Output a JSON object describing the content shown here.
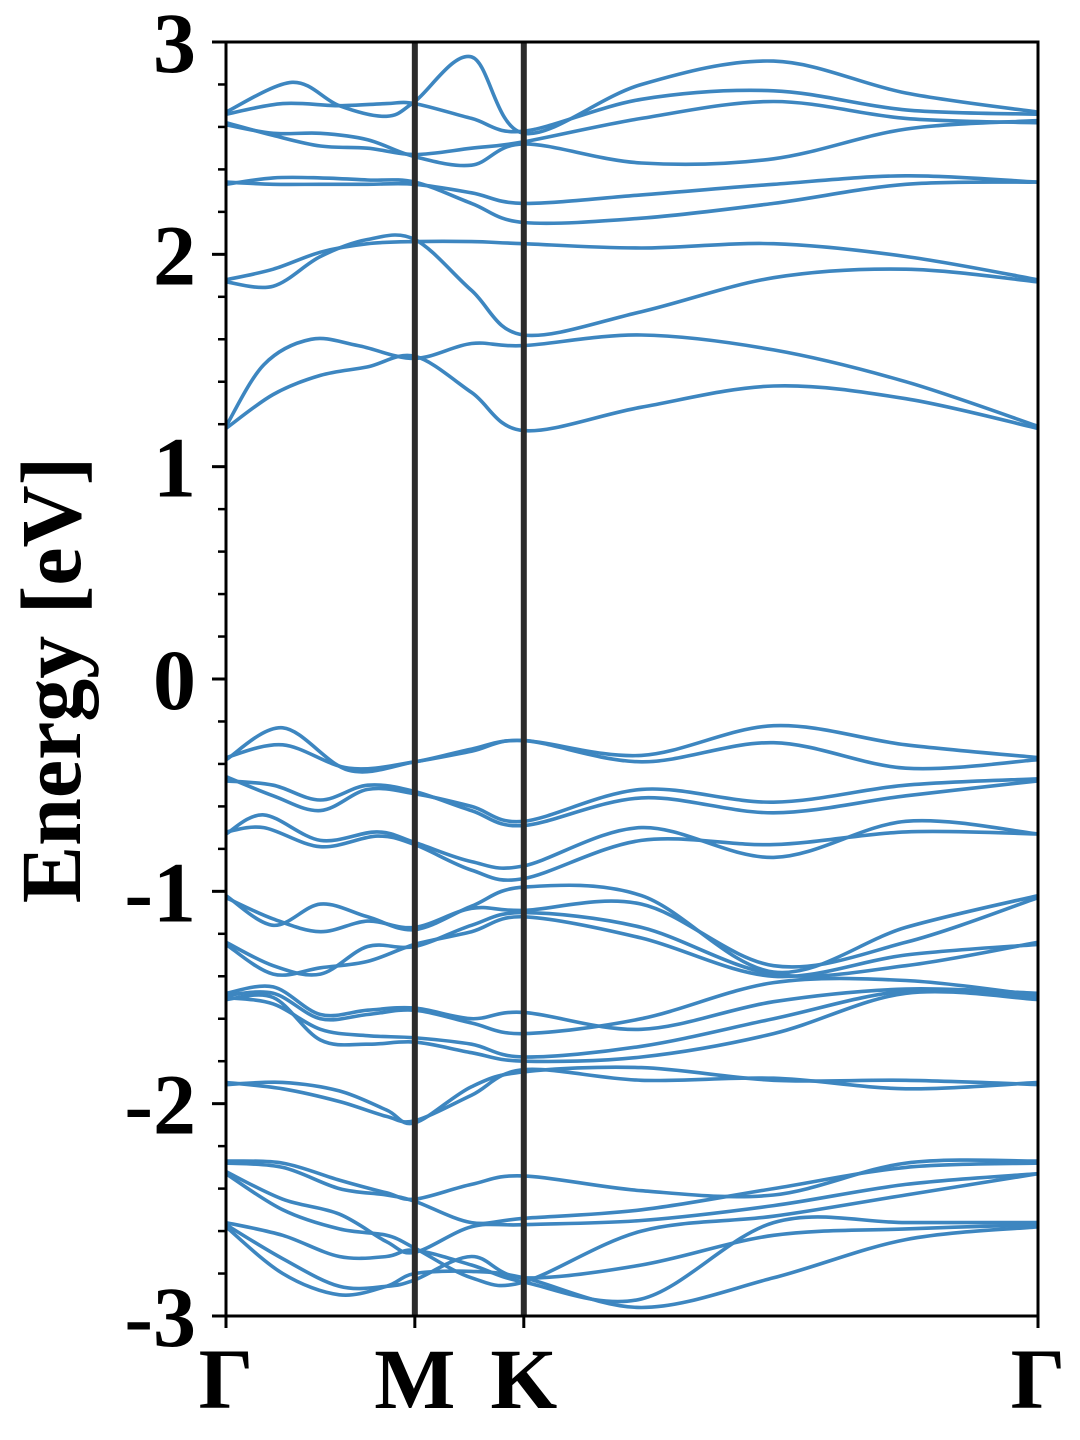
{
  "chart_data": {
    "type": "line",
    "title": "",
    "xlabel": "",
    "ylabel": "Energy [eV]",
    "ylim": [
      -3,
      3
    ],
    "grid": false,
    "legend": "none",
    "x_tick_labels": [
      "Γ",
      "M",
      "K",
      "Γ"
    ],
    "x_tick_positions": [
      0,
      1,
      1.577,
      4.3
    ],
    "x_range": [
      0,
      4.3
    ],
    "y_ticks": [
      -3,
      -2,
      -1,
      0,
      1,
      2,
      3
    ],
    "y_tick_labels": [
      "-3",
      "-2",
      "-1",
      "0",
      "1",
      "2",
      "3"
    ],
    "y_minor_step": 0.2,
    "vertical_lines_at": [
      1,
      1.577
    ],
    "colors": {
      "band": "#3d86c0",
      "axes": "#000000",
      "symmetry_line": "#2b2b2b"
    },
    "series": [
      {
        "x": [
          0,
          0.25,
          0.5,
          0.75,
          1,
          1.3,
          1.577,
          2.2,
          2.9,
          3.6,
          4.3
        ],
        "values": [
          1.18,
          1.34,
          1.43,
          1.47,
          1.52,
          1.35,
          1.17,
          1.28,
          1.38,
          1.32,
          1.18
        ]
      },
      {
        "x": [
          0,
          0.2,
          0.45,
          0.7,
          1,
          1.3,
          1.577,
          2.2,
          2.9,
          3.6,
          4.3
        ],
        "values": [
          1.19,
          1.48,
          1.6,
          1.57,
          1.51,
          1.58,
          1.57,
          1.62,
          1.55,
          1.4,
          1.19
        ]
      },
      {
        "x": [
          0,
          0.25,
          0.5,
          0.75,
          1,
          1.3,
          1.577,
          2.2,
          2.9,
          3.6,
          4.3
        ],
        "values": [
          1.87,
          1.85,
          1.99,
          2.07,
          2.07,
          1.83,
          1.62,
          1.73,
          1.89,
          1.93,
          1.87
        ]
      },
      {
        "x": [
          0,
          0.25,
          0.5,
          0.75,
          1,
          1.3,
          1.577,
          2.2,
          2.9,
          3.6,
          4.3
        ],
        "values": [
          1.88,
          1.93,
          2.01,
          2.05,
          2.06,
          2.06,
          2.05,
          2.03,
          2.05,
          1.99,
          1.88
        ]
      },
      {
        "x": [
          0,
          0.25,
          0.5,
          0.75,
          1,
          1.3,
          1.577,
          2.2,
          2.9,
          3.6,
          4.3
        ],
        "values": [
          2.33,
          2.36,
          2.36,
          2.35,
          2.34,
          2.24,
          2.15,
          2.17,
          2.24,
          2.33,
          2.34
        ]
      },
      {
        "x": [
          0,
          0.25,
          0.5,
          0.75,
          1,
          1.3,
          1.577,
          2.2,
          2.9,
          3.6,
          4.3
        ],
        "values": [
          2.34,
          2.33,
          2.33,
          2.33,
          2.33,
          2.29,
          2.24,
          2.28,
          2.33,
          2.37,
          2.34
        ]
      },
      {
        "x": [
          0,
          0.25,
          0.5,
          0.75,
          1,
          1.3,
          1.577,
          2.2,
          2.9,
          3.6,
          4.3
        ],
        "values": [
          2.61,
          2.57,
          2.57,
          2.54,
          2.46,
          2.42,
          2.52,
          2.43,
          2.45,
          2.59,
          2.63
        ]
      },
      {
        "x": [
          0,
          0.25,
          0.5,
          0.75,
          1,
          1.3,
          1.577,
          2.2,
          2.9,
          3.6,
          4.3
        ],
        "values": [
          2.62,
          2.56,
          2.51,
          2.5,
          2.47,
          2.5,
          2.53,
          2.64,
          2.72,
          2.64,
          2.62
        ]
      },
      {
        "x": [
          0,
          0.3,
          0.6,
          0.85,
          1,
          1.3,
          1.577,
          2.2,
          2.9,
          3.6,
          4.3
        ],
        "values": [
          2.66,
          2.71,
          2.7,
          2.71,
          2.71,
          2.64,
          2.58,
          2.73,
          2.77,
          2.68,
          2.66
        ]
      },
      {
        "x": [
          0,
          0.35,
          0.6,
          0.85,
          1,
          1.3,
          1.577,
          2.2,
          2.9,
          3.6,
          4.3
        ],
        "values": [
          2.67,
          2.81,
          2.7,
          2.65,
          2.72,
          2.93,
          2.57,
          2.8,
          2.91,
          2.76,
          2.67
        ]
      },
      {
        "x": [
          0,
          0.3,
          0.65,
          1,
          1.3,
          1.577,
          2.2,
          2.9,
          3.6,
          4.3
        ],
        "values": [
          -0.37,
          -0.31,
          -0.42,
          -0.39,
          -0.33,
          -0.29,
          -0.36,
          -0.22,
          -0.31,
          -0.37
        ]
      },
      {
        "x": [
          0,
          0.3,
          0.65,
          1,
          1.3,
          1.577,
          2.2,
          2.9,
          3.6,
          4.3
        ],
        "values": [
          -0.38,
          -0.23,
          -0.43,
          -0.39,
          -0.34,
          -0.29,
          -0.39,
          -0.3,
          -0.42,
          -0.38
        ]
      },
      {
        "x": [
          0,
          0.25,
          0.5,
          0.75,
          1,
          1.3,
          1.577,
          2.2,
          2.9,
          3.6,
          4.3
        ],
        "values": [
          -0.46,
          -0.55,
          -0.62,
          -0.52,
          -0.54,
          -0.6,
          -0.67,
          -0.52,
          -0.58,
          -0.5,
          -0.47
        ]
      },
      {
        "x": [
          0,
          0.25,
          0.5,
          0.75,
          1,
          1.3,
          1.577,
          2.2,
          2.9,
          3.6,
          4.3
        ],
        "values": [
          -0.48,
          -0.5,
          -0.57,
          -0.5,
          -0.53,
          -0.62,
          -0.69,
          -0.56,
          -0.63,
          -0.55,
          -0.48
        ]
      },
      {
        "x": [
          0,
          0.2,
          0.5,
          0.8,
          1,
          1.3,
          1.577,
          2.2,
          2.9,
          3.6,
          4.3
        ],
        "values": [
          -0.73,
          -0.64,
          -0.76,
          -0.72,
          -0.77,
          -0.86,
          -0.88,
          -0.7,
          -0.84,
          -0.67,
          -0.73
        ]
      },
      {
        "x": [
          0,
          0.2,
          0.5,
          0.8,
          1,
          1.3,
          1.577,
          2.2,
          2.9,
          3.6,
          4.3
        ],
        "values": [
          -0.72,
          -0.7,
          -0.79,
          -0.74,
          -0.78,
          -0.9,
          -0.94,
          -0.76,
          -0.78,
          -0.72,
          -0.73
        ]
      },
      {
        "x": [
          0,
          0.25,
          0.5,
          0.75,
          1,
          1.3,
          1.577,
          2.2,
          2.9,
          3.6,
          4.3
        ],
        "values": [
          -1.02,
          -1.16,
          -1.06,
          -1.12,
          -1.18,
          -1.07,
          -0.98,
          -1.02,
          -1.38,
          -1.17,
          -1.02
        ]
      },
      {
        "x": [
          0,
          0.25,
          0.5,
          0.75,
          1,
          1.3,
          1.577,
          2.2,
          2.9,
          3.6,
          4.3
        ],
        "values": [
          -1.03,
          -1.13,
          -1.19,
          -1.14,
          -1.17,
          -1.08,
          -1.09,
          -1.06,
          -1.35,
          -1.24,
          -1.03
        ]
      },
      {
        "x": [
          0,
          0.25,
          0.5,
          0.75,
          1,
          1.3,
          1.577,
          2.2,
          2.9,
          3.6,
          4.3
        ],
        "values": [
          -1.24,
          -1.35,
          -1.39,
          -1.26,
          -1.26,
          -1.16,
          -1.1,
          -1.17,
          -1.39,
          -1.35,
          -1.24
        ]
      },
      {
        "x": [
          0,
          0.25,
          0.5,
          0.75,
          1,
          1.3,
          1.577,
          2.2,
          2.9,
          3.6,
          4.3
        ],
        "values": [
          -1.25,
          -1.39,
          -1.36,
          -1.33,
          -1.25,
          -1.19,
          -1.12,
          -1.22,
          -1.4,
          -1.3,
          -1.25
        ]
      },
      {
        "x": [
          0,
          0.25,
          0.5,
          0.75,
          1,
          1.3,
          1.577,
          2.2,
          2.9,
          3.6,
          4.3
        ],
        "values": [
          -1.48,
          -1.45,
          -1.58,
          -1.56,
          -1.55,
          -1.6,
          -1.57,
          -1.65,
          -1.52,
          -1.46,
          -1.48
        ]
      },
      {
        "x": [
          0,
          0.25,
          0.5,
          0.75,
          1,
          1.3,
          1.577,
          2.2,
          2.9,
          3.6,
          4.3
        ],
        "values": [
          -1.49,
          -1.48,
          -1.6,
          -1.58,
          -1.56,
          -1.62,
          -1.67,
          -1.6,
          -1.43,
          -1.42,
          -1.49
        ]
      },
      {
        "x": [
          0,
          0.25,
          0.5,
          0.75,
          1,
          1.3,
          1.577,
          2.2,
          2.9,
          3.6,
          4.3
        ],
        "values": [
          -1.5,
          -1.53,
          -1.65,
          -1.68,
          -1.69,
          -1.72,
          -1.78,
          -1.73,
          -1.6,
          -1.47,
          -1.5
        ]
      },
      {
        "x": [
          0,
          0.25,
          0.5,
          0.75,
          1,
          1.3,
          1.577,
          2.2,
          2.9,
          3.6,
          4.3
        ],
        "values": [
          -1.51,
          -1.5,
          -1.7,
          -1.72,
          -1.71,
          -1.76,
          -1.8,
          -1.78,
          -1.67,
          -1.48,
          -1.51
        ]
      },
      {
        "x": [
          0,
          0.3,
          0.6,
          0.85,
          1,
          1.3,
          1.577,
          2.2,
          2.9,
          3.6,
          4.3
        ],
        "values": [
          -1.9,
          -1.93,
          -1.99,
          -2.06,
          -2.08,
          -1.96,
          -1.84,
          -1.89,
          -1.88,
          -1.93,
          -1.9
        ]
      },
      {
        "x": [
          0,
          0.3,
          0.6,
          0.85,
          1,
          1.3,
          1.577,
          2.2,
          2.9,
          3.6,
          4.3
        ],
        "values": [
          -1.91,
          -1.9,
          -1.94,
          -2.03,
          -2.09,
          -1.92,
          -1.85,
          -1.83,
          -1.89,
          -1.89,
          -1.91
        ]
      },
      {
        "x": [
          0,
          0.3,
          0.6,
          0.85,
          1,
          1.3,
          1.577,
          2.2,
          2.9,
          3.6,
          4.3
        ],
        "values": [
          -2.27,
          -2.28,
          -2.36,
          -2.42,
          -2.45,
          -2.38,
          -2.34,
          -2.41,
          -2.43,
          -2.28,
          -2.27
        ]
      },
      {
        "x": [
          0,
          0.3,
          0.6,
          0.85,
          1,
          1.3,
          1.577,
          2.2,
          2.9,
          3.6,
          4.3
        ],
        "values": [
          -2.28,
          -2.3,
          -2.4,
          -2.43,
          -2.46,
          -2.56,
          -2.54,
          -2.5,
          -2.4,
          -2.3,
          -2.28
        ]
      },
      {
        "x": [
          0,
          0.3,
          0.6,
          0.85,
          1,
          1.3,
          1.577,
          2.2,
          2.9,
          3.6,
          4.3
        ],
        "values": [
          -2.32,
          -2.45,
          -2.52,
          -2.65,
          -2.7,
          -2.58,
          -2.57,
          -2.55,
          -2.48,
          -2.38,
          -2.33
        ]
      },
      {
        "x": [
          0,
          0.3,
          0.6,
          0.85,
          1,
          1.3,
          1.577,
          2.2,
          2.9,
          3.6,
          4.3
        ],
        "values": [
          -2.33,
          -2.5,
          -2.59,
          -2.62,
          -2.68,
          -2.82,
          -2.84,
          -2.6,
          -2.53,
          -2.43,
          -2.33
        ]
      },
      {
        "x": [
          0,
          0.3,
          0.6,
          0.85,
          1,
          1.3,
          1.577,
          2.2,
          2.9,
          3.6,
          4.3
        ],
        "values": [
          -2.56,
          -2.62,
          -2.72,
          -2.72,
          -2.69,
          -2.76,
          -2.84,
          -2.92,
          -2.56,
          -2.56,
          -2.56
        ]
      },
      {
        "x": [
          0,
          0.3,
          0.6,
          0.85,
          1,
          1.3,
          1.577,
          2.2,
          2.9,
          3.6,
          4.3
        ],
        "values": [
          -2.57,
          -2.73,
          -2.86,
          -2.86,
          -2.83,
          -2.72,
          -2.82,
          -2.76,
          -2.62,
          -2.59,
          -2.57
        ]
      },
      {
        "x": [
          0,
          0.3,
          0.6,
          0.85,
          1,
          1.3,
          1.577,
          2.2,
          2.9,
          3.6,
          4.3
        ],
        "values": [
          -2.58,
          -2.8,
          -2.9,
          -2.86,
          -2.8,
          -2.79,
          -2.82,
          -2.96,
          -2.82,
          -2.64,
          -2.58
        ]
      }
    ]
  }
}
